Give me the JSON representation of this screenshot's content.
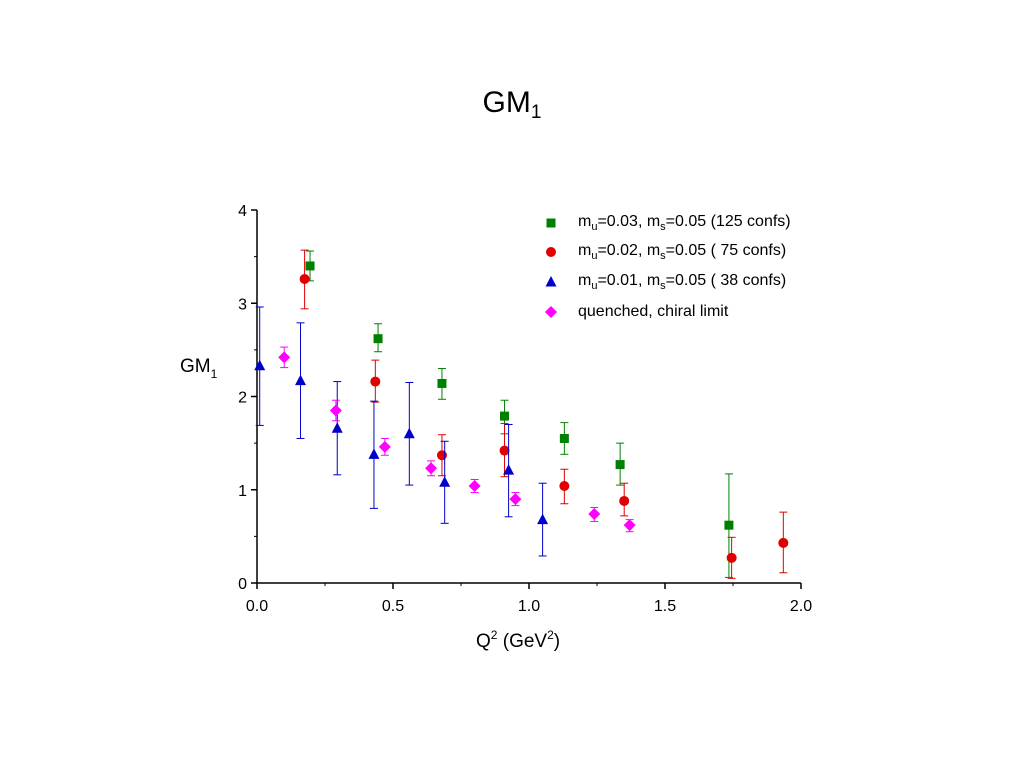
{
  "chart_data": {
    "type": "scatter",
    "title": {
      "main": "GM",
      "sub": "1"
    },
    "ylabel": {
      "main": "GM",
      "sub": "1"
    },
    "xlabel": {
      "pre": "Q",
      "sup1": "2",
      "mid": " (GeV",
      "sup2": "2",
      "post": ")"
    },
    "xlim": [
      0.0,
      2.0
    ],
    "ylim": [
      0,
      4
    ],
    "x_ticks": [
      "0.0",
      "0.5",
      "1.0",
      "1.5",
      "2.0"
    ],
    "y_ticks": [
      "0",
      "1",
      "2",
      "3",
      "4"
    ],
    "grid": false,
    "legend_position": "top-right",
    "series": [
      {
        "name": "m_u=0.03, m_s=0.05 (125 confs)",
        "legend": {
          "a": "m",
          "a_sub": "u",
          "b": "=0.03, m",
          "b_sub": "s",
          "c": "=0.05  (125 confs)"
        },
        "marker": "square",
        "color": "#008000",
        "points": [
          {
            "x": 0.195,
            "y": 3.4,
            "lo": 3.24,
            "hi": 3.56
          },
          {
            "x": 0.445,
            "y": 2.62,
            "lo": 2.48,
            "hi": 2.78
          },
          {
            "x": 0.68,
            "y": 2.14,
            "lo": 1.97,
            "hi": 2.3
          },
          {
            "x": 0.91,
            "y": 1.79,
            "lo": 1.6,
            "hi": 1.96
          },
          {
            "x": 1.13,
            "y": 1.55,
            "lo": 1.38,
            "hi": 1.72
          },
          {
            "x": 1.335,
            "y": 1.27,
            "lo": 1.05,
            "hi": 1.5
          },
          {
            "x": 1.735,
            "y": 0.62,
            "lo": 0.06,
            "hi": 1.17
          }
        ]
      },
      {
        "name": "m_u=0.02, m_s=0.05 (75 confs)",
        "legend": {
          "a": "m",
          "a_sub": "u",
          "b": "=0.02, m",
          "b_sub": "s",
          "c": "=0.05  ( 75 confs)"
        },
        "marker": "circle",
        "color": "#e00000",
        "points": [
          {
            "x": 0.175,
            "y": 3.26,
            "lo": 2.94,
            "hi": 3.57
          },
          {
            "x": 0.435,
            "y": 2.16,
            "lo": 1.94,
            "hi": 2.39
          },
          {
            "x": 0.68,
            "y": 1.37,
            "lo": 1.15,
            "hi": 1.59
          },
          {
            "x": 0.91,
            "y": 1.42,
            "lo": 1.14,
            "hi": 1.71
          },
          {
            "x": 1.13,
            "y": 1.04,
            "lo": 0.85,
            "hi": 1.22
          },
          {
            "x": 1.35,
            "y": 0.88,
            "lo": 0.72,
            "hi": 1.07
          },
          {
            "x": 1.745,
            "y": 0.27,
            "lo": 0.05,
            "hi": 0.49
          },
          {
            "x": 1.935,
            "y": 0.43,
            "lo": 0.11,
            "hi": 0.76
          }
        ]
      },
      {
        "name": "m_u=0.01, m_s=0.05 (38 confs)",
        "legend": {
          "a": "m",
          "a_sub": "u",
          "b": "=0.01, m",
          "b_sub": "s",
          "c": "=0.05  ( 38 confs)"
        },
        "marker": "triangle",
        "color": "#0000cc",
        "points": [
          {
            "x": 0.01,
            "y": 2.33,
            "lo": 1.69,
            "hi": 2.96
          },
          {
            "x": 0.16,
            "y": 2.17,
            "lo": 1.55,
            "hi": 2.79
          },
          {
            "x": 0.295,
            "y": 1.66,
            "lo": 1.16,
            "hi": 2.16
          },
          {
            "x": 0.43,
            "y": 1.38,
            "lo": 0.8,
            "hi": 1.95
          },
          {
            "x": 0.56,
            "y": 1.6,
            "lo": 1.05,
            "hi": 2.15
          },
          {
            "x": 0.69,
            "y": 1.08,
            "lo": 0.64,
            "hi": 1.52
          },
          {
            "x": 0.925,
            "y": 1.21,
            "lo": 0.71,
            "hi": 1.7
          },
          {
            "x": 1.05,
            "y": 0.68,
            "lo": 0.29,
            "hi": 1.07
          }
        ]
      },
      {
        "name": "quenched, chiral limit",
        "legend": {
          "a": "quenched, chiral limit",
          "a_sub": "",
          "b": "",
          "b_sub": "",
          "c": ""
        },
        "marker": "diamond",
        "color": "#ff00ff",
        "points": [
          {
            "x": 0.1,
            "y": 2.42,
            "lo": 2.31,
            "hi": 2.53
          },
          {
            "x": 0.29,
            "y": 1.85,
            "lo": 1.74,
            "hi": 1.96
          },
          {
            "x": 0.47,
            "y": 1.46,
            "lo": 1.37,
            "hi": 1.55
          },
          {
            "x": 0.64,
            "y": 1.23,
            "lo": 1.15,
            "hi": 1.31
          },
          {
            "x": 0.8,
            "y": 1.04,
            "lo": 0.97,
            "hi": 1.11
          },
          {
            "x": 0.95,
            "y": 0.9,
            "lo": 0.83,
            "hi": 0.97
          },
          {
            "x": 1.24,
            "y": 0.74,
            "lo": 0.66,
            "hi": 0.81
          },
          {
            "x": 1.37,
            "y": 0.62,
            "lo": 0.55,
            "hi": 0.68
          }
        ]
      }
    ]
  }
}
